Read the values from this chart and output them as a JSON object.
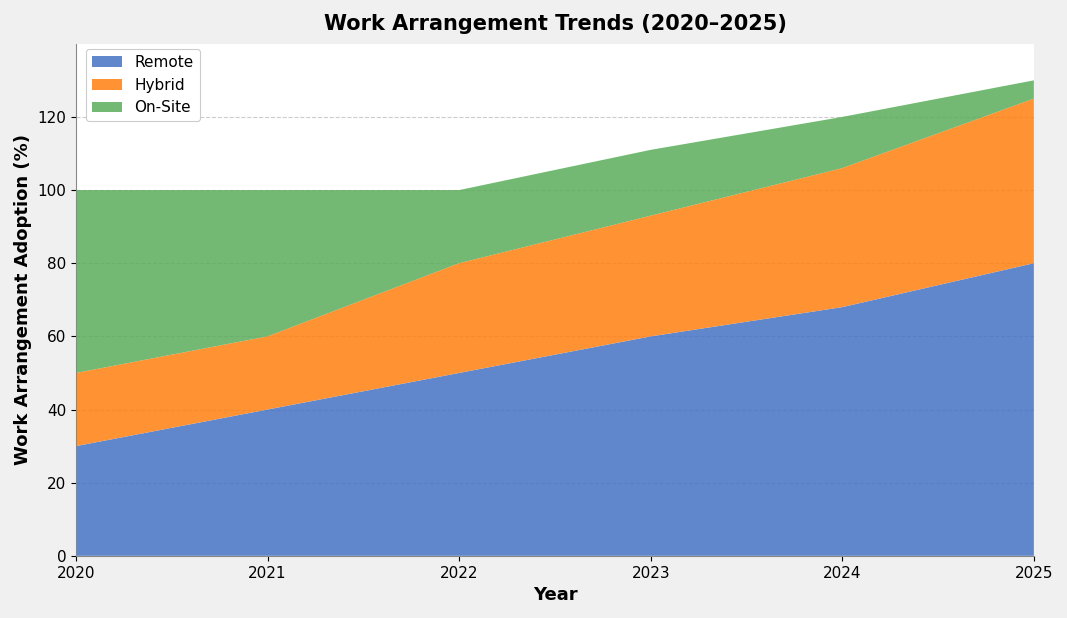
{
  "years": [
    2020,
    2021,
    2022,
    2023,
    2024,
    2025
  ],
  "remote": [
    30,
    40,
    50,
    60,
    68,
    80
  ],
  "hybrid": [
    20,
    20,
    30,
    33,
    38,
    45
  ],
  "onsite": [
    50,
    40,
    20,
    18,
    14,
    5
  ],
  "colors": {
    "remote": "#4472c4",
    "hybrid": "#ff7f0e",
    "onsite": "#5aad5a"
  },
  "title": "Work Arrangement Trends (2020–2025)",
  "xlabel": "Year",
  "ylabel": "Work Arrangement Adoption (%)",
  "legend_labels": [
    "Remote",
    "Hybrid",
    "On-Site"
  ],
  "ylim": [
    0,
    140
  ],
  "yticks": [
    0,
    20,
    40,
    60,
    80,
    100,
    120
  ],
  "background_color": "#f0f0f0",
  "plot_bg_color": "#ffffff",
  "grid_color": "#aaaaaa",
  "title_fontsize": 15,
  "label_fontsize": 13,
  "tick_fontsize": 11
}
